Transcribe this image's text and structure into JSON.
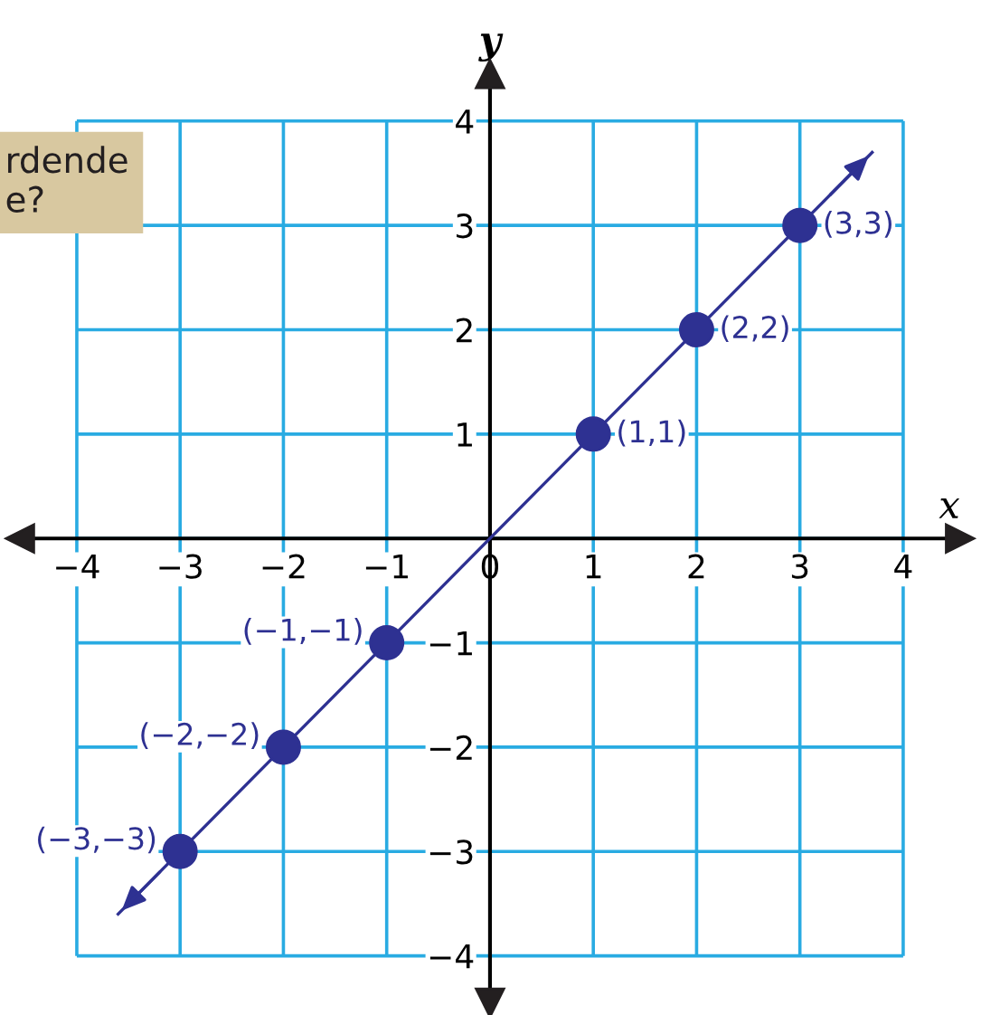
{
  "chart_data": {
    "type": "scatter",
    "xlabel": "x",
    "ylabel": "y",
    "annotations": [
      "rdende\ne?",
      {
        "text": "(−3,−3)",
        "x": -3,
        "y": -3
      },
      {
        "text": "(−2,−2)",
        "x": -2,
        "y": -2
      },
      {
        "text": "(−1,−1)",
        "x": -1,
        "y": -1
      },
      {
        "text": "(1,1)",
        "x": 1,
        "y": 1
      },
      {
        "text": "(2,2)",
        "x": 2,
        "y": 2
      },
      {
        "text": "(3,3)",
        "x": 3,
        "y": 3
      }
    ],
    "xlim": [
      -4.55,
      4.55
    ],
    "ylim": [
      -4.45,
      4.45
    ],
    "xticks": [
      -4,
      -3,
      -2,
      -1,
      0,
      1,
      2,
      3,
      4
    ],
    "yticks": [
      -4,
      -3,
      -2,
      -1,
      1,
      2,
      3,
      4
    ],
    "grid": true,
    "series": [
      {
        "color": "#2e3192",
        "marker": "circle",
        "x": [
          -3,
          -2,
          -1,
          1,
          2,
          3
        ],
        "values": [
          -3,
          -2,
          -1,
          1,
          2,
          3
        ]
      },
      {
        "type": "line",
        "color": "#2e3192",
        "line_style": "solid",
        "x": [
          -3.6,
          3.7
        ],
        "values": [
          -3.6,
          3.7
        ]
      }
    ]
  }
}
